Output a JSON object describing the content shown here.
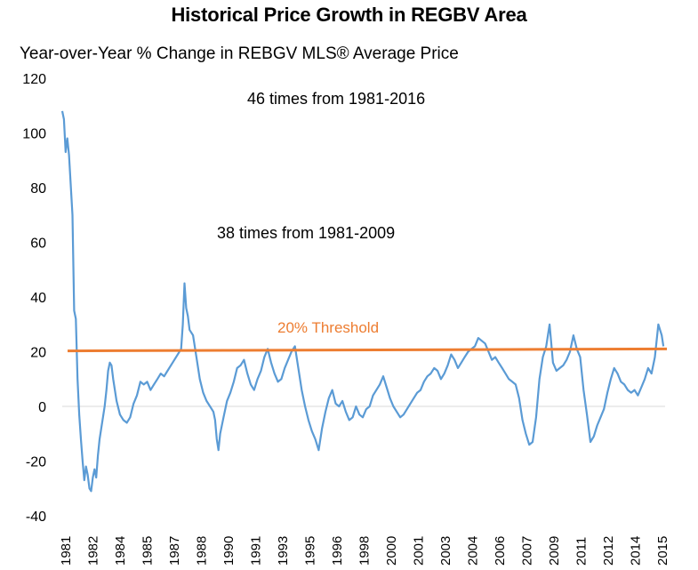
{
  "chart_data": {
    "type": "line",
    "title": "Historical Price Growth in REGBV Area",
    "subtitle": "Year-over-Year % Change in REBGV MLS® Average Price",
    "xlabel": "",
    "ylabel": "",
    "ylim": [
      -40,
      120
    ],
    "yticks": [
      -40,
      -20,
      0,
      20,
      40,
      60,
      80,
      100,
      120
    ],
    "ytick_labels": [
      "-40",
      "-20",
      "0",
      "20",
      "40",
      "60",
      "80",
      "100",
      "120"
    ],
    "xlim": [
      1981.0,
      2016.5
    ],
    "xtick_labels": [
      "1981",
      "1982",
      "1984",
      "1985",
      "1987",
      "1988",
      "1990",
      "1991",
      "1993",
      "1995",
      "1996",
      "1998",
      "2000",
      "2001",
      "2003",
      "2004",
      "2006",
      "2007",
      "2009",
      "2011",
      "2012",
      "2014",
      "2015"
    ],
    "grid": false,
    "legend": "none",
    "annotations": [
      "46 times from 1981-2016",
      "38 times from 1981-2009"
    ],
    "threshold": {
      "label": "20% Threshold",
      "start_value": 20.3,
      "end_value": 21.0
    },
    "colors": {
      "series": "#5b9bd5",
      "threshold": "#ed7d31",
      "axis": "#d9d9d9"
    },
    "series": [
      {
        "name": "YoY % Change in REBGV MLS Average Price",
        "x": [
          1981.0,
          1981.1,
          1981.2,
          1981.3,
          1981.4,
          1981.6,
          1981.7,
          1981.8,
          1981.9,
          1982.0,
          1982.1,
          1982.2,
          1982.3,
          1982.4,
          1982.5,
          1982.6,
          1982.7,
          1982.8,
          1982.9,
          1983.0,
          1983.1,
          1983.2,
          1983.3,
          1983.4,
          1983.5,
          1983.6,
          1983.7,
          1983.8,
          1983.9,
          1984.0,
          1984.2,
          1984.4,
          1984.6,
          1984.8,
          1985.0,
          1985.2,
          1985.4,
          1985.6,
          1985.8,
          1986.0,
          1986.2,
          1986.4,
          1986.6,
          1986.8,
          1987.0,
          1987.2,
          1987.4,
          1987.6,
          1987.8,
          1988.0,
          1988.1,
          1988.2,
          1988.3,
          1988.4,
          1988.5,
          1988.7,
          1988.9,
          1989.1,
          1989.3,
          1989.5,
          1989.7,
          1989.9,
          1990.0,
          1990.1,
          1990.2,
          1990.3,
          1990.5,
          1990.7,
          1990.9,
          1991.1,
          1991.3,
          1991.5,
          1991.7,
          1991.9,
          1992.1,
          1992.3,
          1992.5,
          1992.7,
          1992.9,
          1993.1,
          1993.3,
          1993.5,
          1993.7,
          1993.9,
          1994.1,
          1994.3,
          1994.5,
          1994.7,
          1994.9,
          1995.1,
          1995.3,
          1995.5,
          1995.7,
          1995.9,
          1996.1,
          1996.3,
          1996.5,
          1996.7,
          1996.9,
          1997.1,
          1997.3,
          1997.5,
          1997.7,
          1997.9,
          1998.1,
          1998.3,
          1998.5,
          1998.7,
          1998.9,
          1999.1,
          1999.3,
          1999.5,
          1999.7,
          1999.9,
          2000.1,
          2000.3,
          2000.5,
          2000.7,
          2000.9,
          2001.1,
          2001.3,
          2001.5,
          2001.7,
          2001.9,
          2002.1,
          2002.3,
          2002.5,
          2002.7,
          2002.9,
          2003.1,
          2003.3,
          2003.5,
          2003.7,
          2003.9,
          2004.1,
          2004.3,
          2004.5,
          2004.7,
          2004.9,
          2005.1,
          2005.3,
          2005.5,
          2005.7,
          2005.9,
          2006.1,
          2006.3,
          2006.5,
          2006.7,
          2006.9,
          2007.1,
          2007.3,
          2007.5,
          2007.7,
          2007.9,
          2008.1,
          2008.3,
          2008.5,
          2008.7,
          2008.9,
          2009.1,
          2009.3,
          2009.5,
          2009.7,
          2009.9,
          2010.1,
          2010.3,
          2010.5,
          2010.7,
          2010.9,
          2011.1,
          2011.3,
          2011.5,
          2011.7,
          2011.9,
          2012.1,
          2012.3,
          2012.5,
          2012.7,
          2012.9,
          2013.1,
          2013.3,
          2013.5,
          2013.7,
          2013.9,
          2014.1,
          2014.3,
          2014.5,
          2014.7,
          2014.9,
          2015.1,
          2015.3,
          2015.5,
          2015.7,
          2015.9,
          2016.1,
          2016.3,
          2016.4
        ],
        "values": [
          108,
          105,
          93,
          98,
          92,
          70,
          35,
          32,
          10,
          -3,
          -12,
          -20,
          -27,
          -22,
          -25,
          -30,
          -31,
          -26,
          -23,
          -26,
          -18,
          -12,
          -8,
          -4,
          0,
          6,
          13,
          16,
          15,
          10,
          2,
          -3,
          -5,
          -6,
          -4,
          1,
          4,
          9,
          8,
          9,
          6,
          8,
          10,
          12,
          11,
          13,
          15,
          17,
          19,
          21,
          30,
          45,
          36,
          33,
          28,
          26,
          18,
          10,
          5,
          2,
          0,
          -2,
          -5,
          -12,
          -16,
          -10,
          -4,
          2,
          5,
          9,
          14,
          15,
          17,
          12,
          8,
          6,
          10,
          13,
          18,
          21,
          16,
          12,
          9,
          10,
          14,
          17,
          20,
          22,
          14,
          6,
          0,
          -5,
          -9,
          -12,
          -16,
          -8,
          -2,
          3,
          6,
          1,
          0,
          2,
          -2,
          -5,
          -4,
          0,
          -3,
          -4,
          -1,
          0,
          4,
          6,
          8,
          11,
          7,
          3,
          0,
          -2,
          -4,
          -3,
          -1,
          1,
          3,
          5,
          6,
          9,
          11,
          12,
          14,
          13,
          10,
          12,
          15,
          19,
          17,
          14,
          16,
          18,
          20,
          21,
          22,
          25,
          24,
          23,
          20,
          17,
          18,
          16,
          14,
          12,
          10,
          9,
          8,
          3,
          -5,
          -10,
          -14,
          -13,
          -4,
          10,
          18,
          22,
          30,
          16,
          13,
          14,
          15,
          17,
          20,
          26,
          21,
          18,
          6,
          -3,
          -13,
          -11,
          -7,
          -4,
          -1,
          5,
          10,
          14,
          12,
          9,
          8,
          6,
          5,
          6,
          4,
          7,
          10,
          14,
          12,
          18,
          30,
          26,
          22
        ]
      }
    ]
  }
}
